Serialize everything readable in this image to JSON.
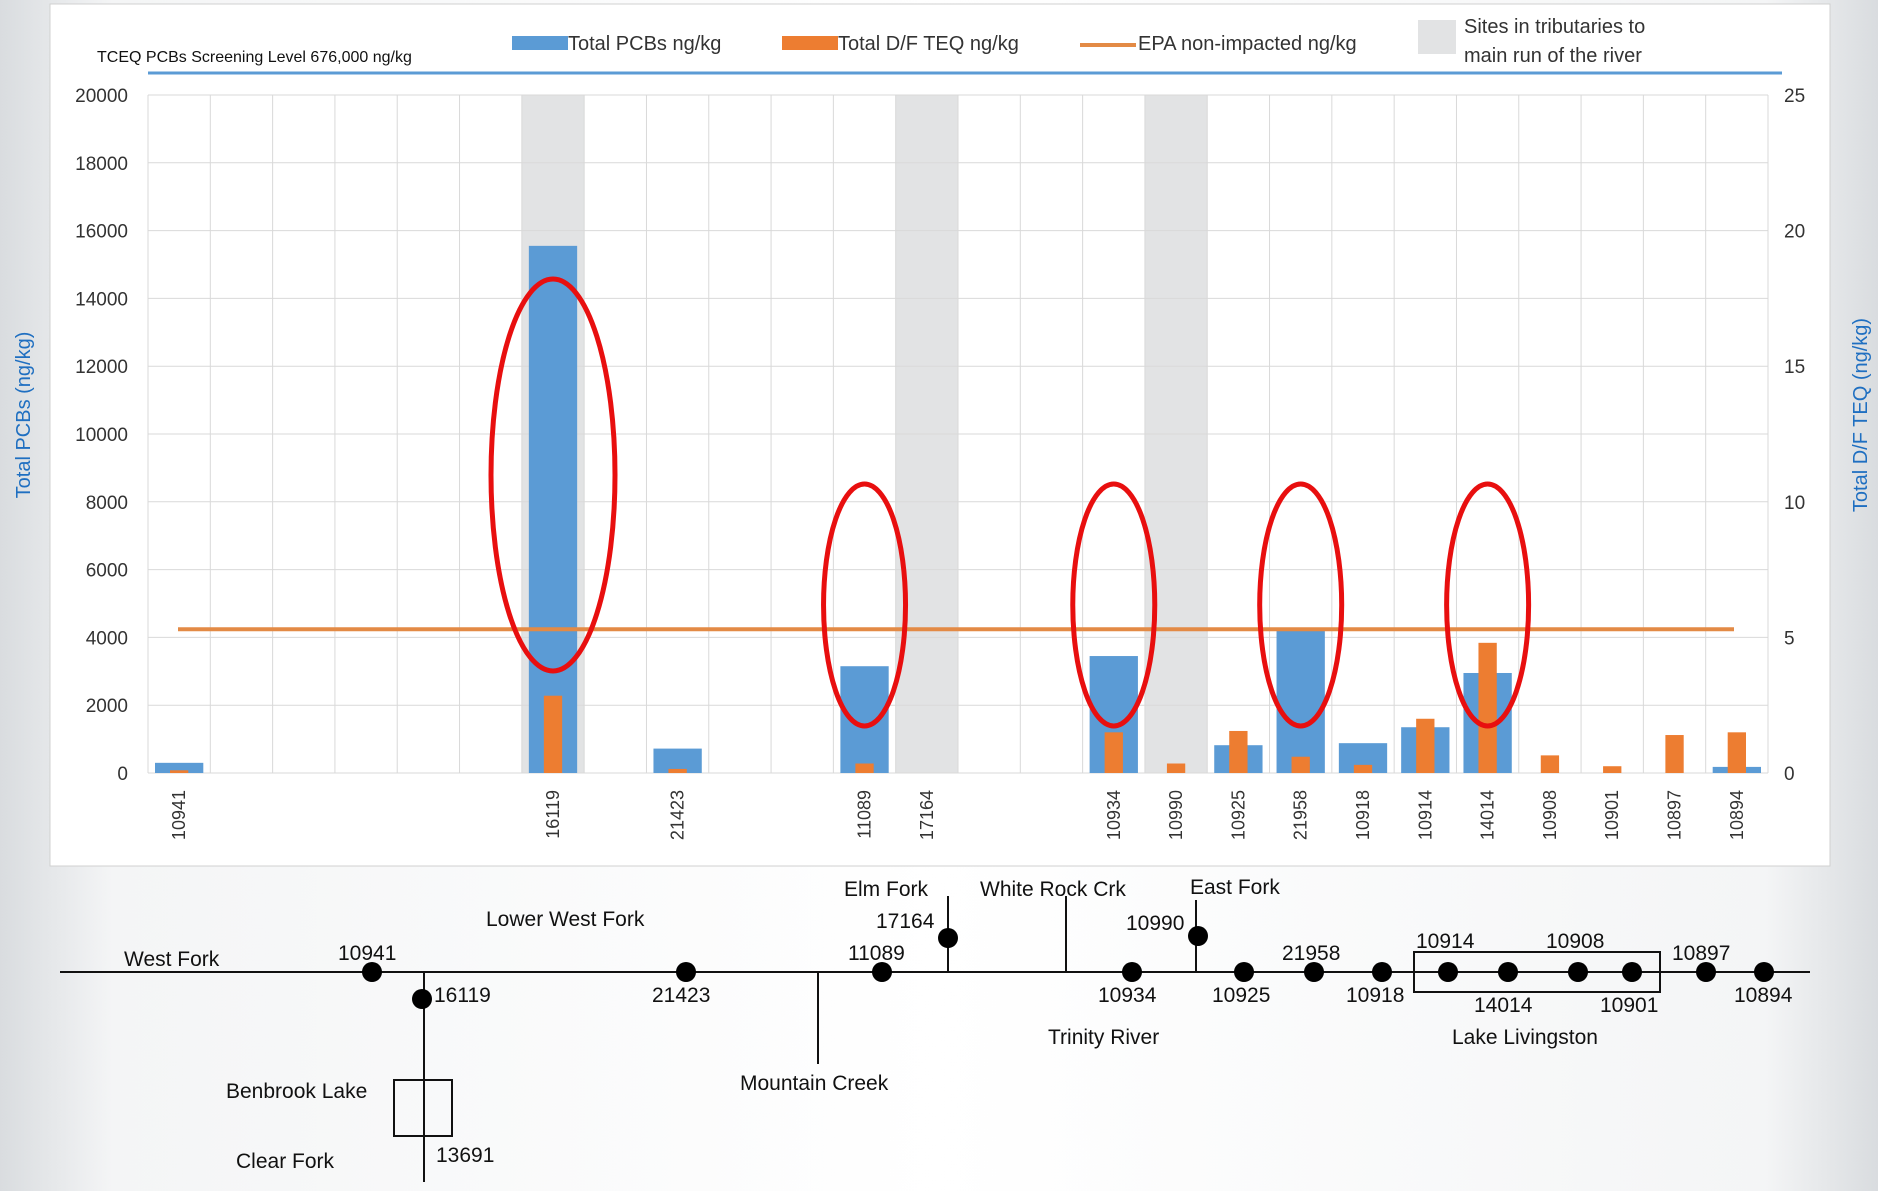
{
  "chart_data": {
    "type": "bar",
    "screening_note": "TCEQ PCBs Screening Level 676,000 ng/kg",
    "ylabel_left": "Total PCBs (ng/kg)",
    "ylabel_right": "Total D/F TEQ (ng/kg)",
    "ylim_left": [
      0,
      20000
    ],
    "ylim_right": [
      0,
      25
    ],
    "yticks_left": [
      "20000",
      "18000",
      "16000",
      "14000",
      "12000",
      "10000",
      "8000",
      "6000",
      "4000",
      "2000",
      "0"
    ],
    "yticks_right": [
      "25",
      "20",
      "15",
      "10",
      "5",
      "0"
    ],
    "legend_placement": "top",
    "legend": {
      "pcbs": "Total PCBs ng/kg",
      "teq": "Total D/F TEQ ng/kg",
      "epa": "EPA non-impacted ng/kg",
      "tributary_line1": "Sites in tributaries to",
      "tributary_line2": "main run of the river"
    },
    "categories": [
      "10941",
      "",
      "",
      "",
      "",
      "",
      "16119",
      "",
      "21423",
      "",
      "",
      "11089",
      "17164",
      "",
      "",
      "10934",
      "10990",
      "10925",
      "21958",
      "10918",
      "10914",
      "14014",
      "10908",
      "10901",
      "10897",
      "10894"
    ],
    "tributary_sites": [
      "16119",
      "17164",
      "10990"
    ],
    "circled_sites": [
      "16119",
      "11089",
      "10934",
      "21958",
      "14014"
    ],
    "series": [
      {
        "name": "Total PCBs ng/kg",
        "axis": "left",
        "values": [
          300,
          null,
          null,
          null,
          null,
          null,
          15550,
          null,
          720,
          null,
          null,
          3150,
          null,
          null,
          null,
          3450,
          null,
          820,
          4200,
          880,
          1350,
          2950,
          null,
          null,
          null,
          180
        ]
      },
      {
        "name": "Total D/F TEQ ng/kg",
        "axis": "right",
        "values": [
          0.1,
          null,
          null,
          null,
          null,
          null,
          2.85,
          null,
          0.15,
          null,
          null,
          0.35,
          null,
          null,
          null,
          1.5,
          0.35,
          1.55,
          0.6,
          0.3,
          2.0,
          4.8,
          0.65,
          0.25,
          1.4,
          1.5
        ]
      },
      {
        "name": "EPA non-impacted ng/kg",
        "axis": "right",
        "constant": 5.3
      }
    ],
    "colors": {
      "pcbs": "#5b9bd5",
      "teq": "#ed7d31",
      "epa": "#e38a45",
      "tributary": "#e2e3e4",
      "screening": "#5b9bd5",
      "circle": "#e80f0f",
      "axis_title": "#1f6fc1"
    }
  },
  "river_map": {
    "labels": {
      "west_fork": "West Fork",
      "lower_west_fork": "Lower West Fork",
      "elm_fork": "Elm Fork",
      "white_rock": "White Rock Crk",
      "east_fork": "East Fork",
      "mountain_creek": "Mountain Creek",
      "trinity_river": "Trinity River",
      "lake_livingston": "Lake Livingston",
      "benbrook_lake": "Benbrook Lake",
      "clear_fork": "Clear Fork"
    },
    "sites": [
      "10941",
      "16119",
      "21423",
      "11089",
      "17164",
      "10934",
      "10990",
      "10925",
      "21958",
      "10918",
      "10914",
      "14014",
      "10908",
      "10901",
      "10897",
      "10894",
      "13691"
    ]
  }
}
